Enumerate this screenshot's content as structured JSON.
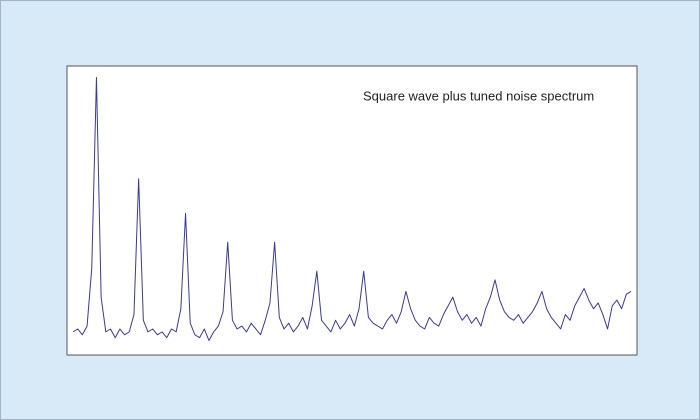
{
  "chart_data": {
    "type": "line",
    "title": "Square wave plus tuned noise spectrum",
    "color": "#3a3a9c",
    "ylim": [
      0,
      100
    ],
    "values": [
      8,
      9,
      7,
      10,
      30,
      96,
      20,
      8,
      9,
      6,
      9,
      7,
      8,
      14,
      61,
      12,
      8,
      9,
      7,
      8,
      6,
      9,
      8,
      16,
      49,
      11,
      7,
      6,
      9,
      5,
      8,
      10,
      15,
      39,
      12,
      9,
      10,
      8,
      11,
      9,
      7,
      12,
      18,
      39,
      13,
      9,
      11,
      8,
      10,
      13,
      9,
      17,
      29,
      12,
      10,
      8,
      12,
      9,
      11,
      14,
      10,
      16,
      29,
      13,
      11,
      10,
      9,
      12,
      14,
      11,
      15,
      22,
      16,
      12,
      10,
      9,
      13,
      11,
      10,
      14,
      17,
      20,
      15,
      12,
      14,
      11,
      13,
      10,
      16,
      20,
      26,
      19,
      15,
      13,
      12,
      14,
      11,
      13,
      15,
      18,
      22,
      16,
      13,
      11,
      9,
      14,
      12,
      17,
      20,
      23,
      19,
      16,
      18,
      14,
      9,
      17,
      19,
      16,
      21,
      22
    ]
  }
}
